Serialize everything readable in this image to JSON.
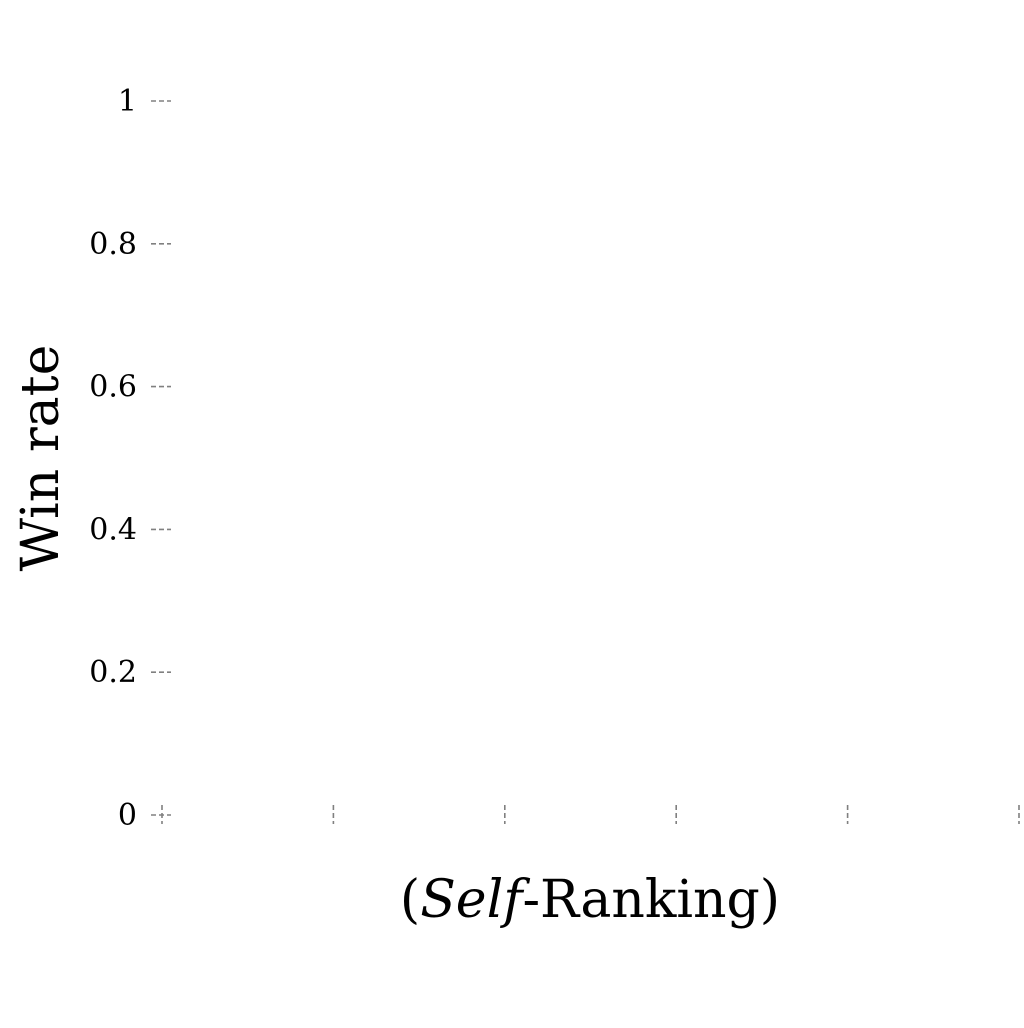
{
  "chart_data": {
    "type": "bar",
    "title": "",
    "ylabel": "Win rate",
    "xlabel": {
      "prefix": "(",
      "emphasis": "Self",
      "suffix": "-Ranking)"
    },
    "ylim": [
      0,
      1
    ],
    "y_ticks": [
      0,
      0.2,
      0.4,
      0.6,
      0.8,
      1
    ],
    "y_tick_labels": [
      "0",
      "0.2",
      "0.4",
      "0.6",
      "0.8",
      "1"
    ],
    "x_tick_count": 6,
    "categories": [],
    "series": [],
    "grid": false,
    "legend": "none",
    "colors": {
      "tick": "#808080",
      "text": "#000000",
      "background": "#ffffff"
    }
  }
}
